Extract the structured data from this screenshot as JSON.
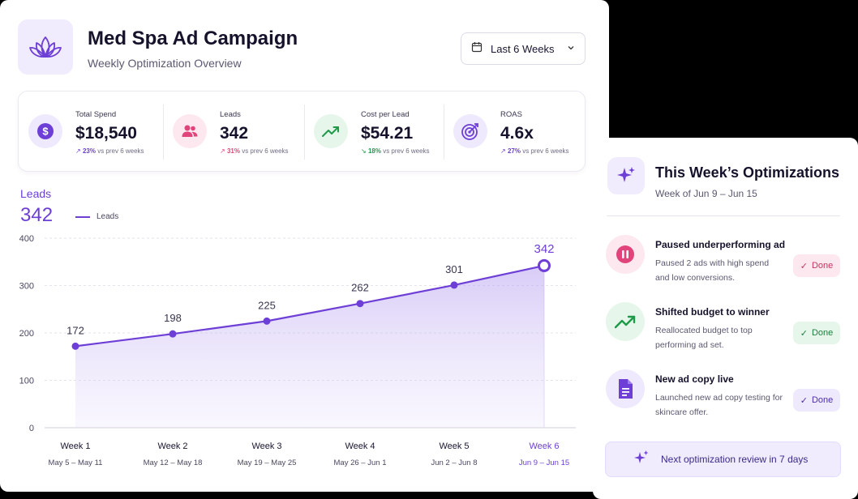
{
  "header": {
    "title": "Med Spa Ad Campaign",
    "subtitle": "Weekly Optimization Overview",
    "logo_icon": "lotus-icon",
    "date_range_label": "Last 6 Weeks"
  },
  "kpis": [
    {
      "label": "Total Spend",
      "value": "$18,540",
      "delta_pct": "23%",
      "delta_text": "vs prev 6 weeks",
      "icon": "dollar-icon",
      "icon_bg": "#efe9fd",
      "icon_color": "#6d3fd6",
      "delta_color": "#6d3fd6",
      "direction": "up"
    },
    {
      "label": "Leads",
      "value": "342",
      "delta_pct": "31%",
      "delta_text": "vs prev 6 weeks",
      "icon": "users-icon",
      "icon_bg": "#fde8ef",
      "icon_color": "#e0447a",
      "delta_color": "#e0447a",
      "direction": "up"
    },
    {
      "label": "Cost per Lead",
      "value": "$54.21",
      "delta_pct": "18%",
      "delta_text": "vs prev 6 weeks",
      "icon": "trend-up-icon",
      "icon_bg": "#e6f6ea",
      "icon_color": "#1f9a4a",
      "delta_color": "#1f9a4a",
      "direction": "down"
    },
    {
      "label": "ROAS",
      "value": "4.6x",
      "delta_pct": "27%",
      "delta_text": "vs prev 6 weeks",
      "icon": "target-icon",
      "icon_bg": "#efe9fd",
      "icon_color": "#6d3fd6",
      "delta_color": "#6d3fd6",
      "direction": "up"
    }
  ],
  "chart_data": {
    "type": "area",
    "title": "Leads",
    "headline_value": "342",
    "legend": [
      "Leads"
    ],
    "legend_placement": "top-left",
    "categories": [
      "Week 1",
      "Week 2",
      "Week 3",
      "Week 4",
      "Week 5",
      "Week 6"
    ],
    "date_ranges": [
      "May 5 – May 11",
      "May 12 – May 18",
      "May 19 – May 25",
      "May 26 – Jun 1",
      "Jun 2 – Jun 8",
      "Jun 9 – Jun 15"
    ],
    "series": [
      {
        "name": "Leads",
        "values": [
          172,
          198,
          225,
          262,
          301,
          342
        ]
      }
    ],
    "ylim": [
      0,
      400
    ],
    "yticks": [
      0,
      100,
      200,
      300,
      400
    ],
    "grid": true,
    "highlight_index": 5,
    "line_color": "#6d3fd6"
  },
  "optimizations": {
    "title": "This Week’s Optimizations",
    "subtitle": "Week of Jun 9 – Jun 15",
    "items": [
      {
        "title": "Paused underperforming ad",
        "desc": "Paused 2 ads with high spend and low conversions.",
        "status": "Done",
        "icon": "pause-icon",
        "icon_bg": "#fde8ef",
        "icon_color": "#e0447a",
        "badge_bg": "#fde8ef",
        "badge_color": "#c2365f"
      },
      {
        "title": "Shifted budget to winner",
        "desc": "Reallocated budget to top performing ad set.",
        "status": "Done",
        "icon": "trend-up-icon",
        "icon_bg": "#e6f6ea",
        "icon_color": "#1f9a4a",
        "badge_bg": "#e6f6ea",
        "badge_color": "#1d7f3f"
      },
      {
        "title": "New ad copy live",
        "desc": "Launched new ad copy testing for skincare offer.",
        "status": "Done",
        "icon": "document-icon",
        "icon_bg": "#efe9fd",
        "icon_color": "#6d3fd6",
        "badge_bg": "#efe9fd",
        "badge_color": "#4b2fa6"
      }
    ],
    "next_review": "Next optimization review in 7 days"
  }
}
